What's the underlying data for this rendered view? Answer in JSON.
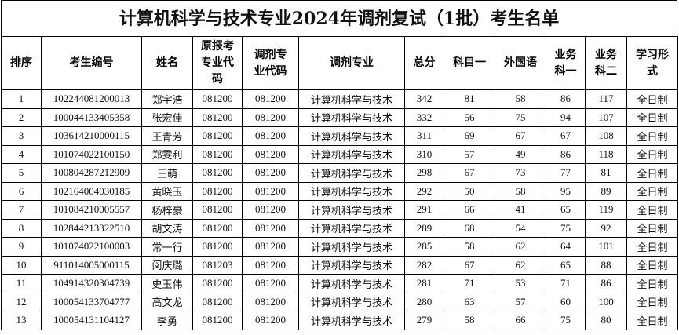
{
  "title": "计算机科学与技术专业2024年调剂复试（1批）考生名单",
  "headers": [
    "排序",
    "考生编号",
    "姓名",
    "原报考专业代码",
    "调剂专业代码",
    "调剂专业",
    "总分",
    "科目一",
    "外国语",
    "业务科一",
    "业务科二",
    "学习形式"
  ],
  "rows": [
    [
      "1",
      "102244081200013",
      "郑宇浩",
      "081200",
      "081200",
      "计算机科学与技术",
      "342",
      "81",
      "58",
      "86",
      "117",
      "全日制"
    ],
    [
      "2",
      "100044133405358",
      "张宏佳",
      "081200",
      "081200",
      "计算机科学与技术",
      "332",
      "56",
      "75",
      "94",
      "107",
      "全日制"
    ],
    [
      "3",
      "103614210000115",
      "王青芳",
      "081200",
      "081200",
      "计算机科学与技术",
      "311",
      "69",
      "67",
      "67",
      "108",
      "全日制"
    ],
    [
      "4",
      "101074022100150",
      "郑雯利",
      "081200",
      "081200",
      "计算机科学与技术",
      "310",
      "57",
      "49",
      "86",
      "118",
      "全日制"
    ],
    [
      "5",
      "100804287212909",
      "王萌",
      "081200",
      "081200",
      "计算机科学与技术",
      "298",
      "67",
      "73",
      "77",
      "81",
      "全日制"
    ],
    [
      "6",
      "102164004030185",
      "黄晓玉",
      "081200",
      "081200",
      "计算机科学与技术",
      "292",
      "50",
      "58",
      "95",
      "89",
      "全日制"
    ],
    [
      "7",
      "101084210005557",
      "杨梓豪",
      "081200",
      "081200",
      "计算机科学与技术",
      "291",
      "66",
      "41",
      "65",
      "119",
      "全日制"
    ],
    [
      "8",
      "102844213322510",
      "胡文涛",
      "081200",
      "081200",
      "计算机科学与技术",
      "289",
      "68",
      "54",
      "75",
      "92",
      "全日制"
    ],
    [
      "9",
      "101074022100003",
      "常一行",
      "081200",
      "081200",
      "计算机科学与技术",
      "285",
      "58",
      "62",
      "64",
      "101",
      "全日制"
    ],
    [
      "10",
      "911014005000115",
      "闵庆璐",
      "081203",
      "081200",
      "计算机科学与技术",
      "282",
      "67",
      "62",
      "65",
      "88",
      "全日制"
    ],
    [
      "11",
      "104914320304739",
      "史玉伟",
      "081200",
      "081200",
      "计算机科学与技术",
      "281",
      "71",
      "53",
      "71",
      "86",
      "全日制"
    ],
    [
      "12",
      "100054133704777",
      "高文龙",
      "081200",
      "081200",
      "计算机科学与技术",
      "280",
      "63",
      "57",
      "60",
      "100",
      "全日制"
    ],
    [
      "13",
      "100054131104127",
      "李勇",
      "081200",
      "081200",
      "计算机科学与技术",
      "279",
      "58",
      "66",
      "75",
      "80",
      "全日制"
    ]
  ]
}
